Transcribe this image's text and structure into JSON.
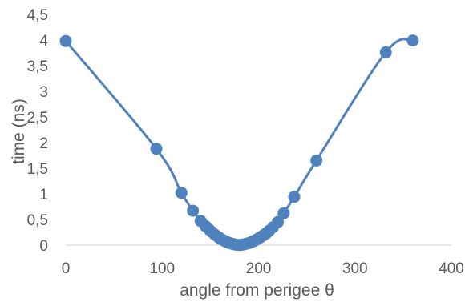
{
  "chart_data": {
    "type": "scatter",
    "title": "",
    "xlabel": "angle from perigee θ",
    "ylabel": "time (ns)",
    "xlim": [
      0,
      400
    ],
    "ylim": [
      0,
      4.5
    ],
    "x_ticks": [
      "0",
      "100",
      "200",
      "300",
      "400"
    ],
    "y_ticks": [
      "0",
      "0,5",
      "1",
      "1,5",
      "2",
      "2,5",
      "3",
      "3,5",
      "4",
      "4,5"
    ],
    "grid": false,
    "legend": "none",
    "color": "#4f81bd",
    "series": [
      {
        "x": [
          0,
          94,
          120,
          132,
          140,
          145,
          149,
          152,
          155,
          158,
          160,
          162,
          164,
          166,
          168,
          170,
          172,
          174,
          176,
          178,
          180,
          182,
          184,
          186,
          188,
          190,
          192,
          194,
          196,
          198,
          200,
          202,
          205,
          208,
          211,
          215,
          220,
          226,
          237,
          260,
          332,
          360
        ],
        "y": [
          3.98,
          1.88,
          1.02,
          0.67,
          0.47,
          0.37,
          0.3,
          0.25,
          0.2,
          0.16,
          0.135,
          0.11,
          0.09,
          0.07,
          0.055,
          0.04,
          0.03,
          0.02,
          0.012,
          0.006,
          0.003,
          0.006,
          0.012,
          0.02,
          0.03,
          0.04,
          0.055,
          0.07,
          0.09,
          0.11,
          0.13,
          0.155,
          0.19,
          0.23,
          0.28,
          0.35,
          0.45,
          0.62,
          0.94,
          1.65,
          3.76,
          3.99
        ]
      }
    ]
  }
}
